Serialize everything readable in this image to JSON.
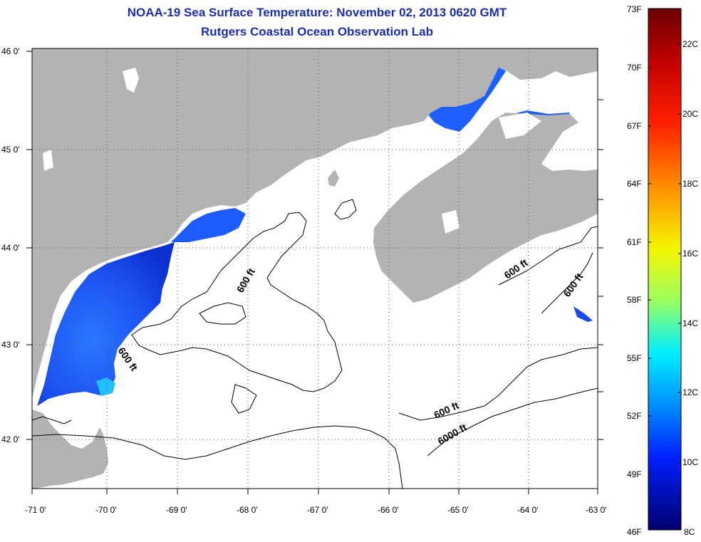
{
  "title": {
    "line1": "NOAA-19 Sea Surface Temperature:  November 02, 2013 0620 GMT",
    "line2": "Rutgers Coastal Ocean Observation Lab"
  },
  "map": {
    "x_ticks": [
      "-71 0'",
      "-70 0'",
      "-69 0'",
      "-68 0'",
      "-67 0'",
      "-66 0'",
      "-65 0'",
      "-64 0'",
      "-63 0'"
    ],
    "y_ticks": [
      "46 0'",
      "45 0'",
      "44 0'",
      "43 0'",
      "42 0'"
    ],
    "contour_labels": [
      "600 ft",
      "600 ft",
      "600 ft",
      "600 ft",
      "600 ft",
      "6000 ft"
    ],
    "colors": {
      "land": "#b3b3b3",
      "ocean": "#ffffff",
      "warm_water": "#1e5bff"
    }
  },
  "colorbar": {
    "fahrenheit": [
      "73F",
      "70F",
      "67F",
      "64F",
      "61F",
      "58F",
      "55F",
      "52F",
      "49F",
      "46F"
    ],
    "celsius": [
      "22C",
      "20C",
      "18C",
      "16C",
      "14C",
      "12C",
      "10C",
      "8C"
    ],
    "colors_top_to_bottom": [
      "#800000",
      "#ff0000",
      "#ff8000",
      "#ffff00",
      "#80ff80",
      "#00ffff",
      "#0080ff",
      "#0000ff",
      "#000080"
    ]
  }
}
